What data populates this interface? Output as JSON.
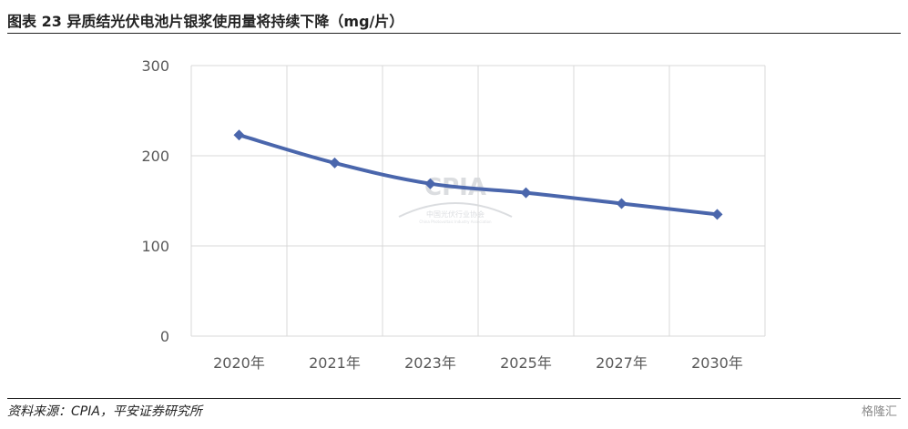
{
  "header": {
    "title": "图表 23   异质结光伏电池片银浆使用量将持续下降（mg/片）"
  },
  "chart_data": {
    "type": "line",
    "categories": [
      "2020年",
      "2021年",
      "2023年",
      "2025年",
      "2027年",
      "2030年"
    ],
    "series": [
      {
        "values": [
          223,
          192,
          169,
          159,
          147,
          135
        ]
      }
    ],
    "ylim": [
      0,
      300
    ],
    "yticks": [
      "0",
      "100",
      "200",
      "300"
    ],
    "grid": true,
    "legend": "none",
    "line_color": "#4a66ac",
    "grid_color": "#d9d9d9"
  },
  "watermark": {
    "logo": "CPIA",
    "line1": "中国光伏行业协会",
    "line2": "China Photovoltaic Industry Association"
  },
  "footer": {
    "source": "资料来源：CPIA，平安证券研究所",
    "brand": "格隆汇"
  }
}
